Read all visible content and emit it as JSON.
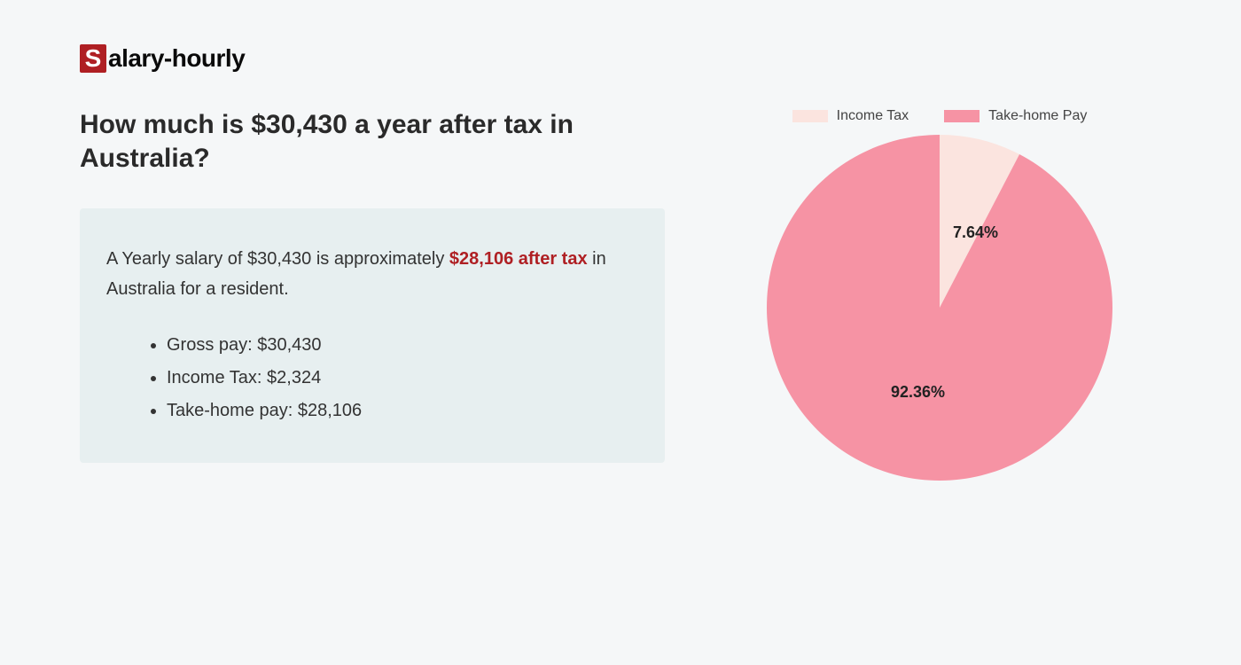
{
  "logo": {
    "box_letter": "S",
    "rest": "alary-hourly",
    "box_bg": "#af1f23",
    "box_fg": "#ffffff",
    "text_color": "#0a0a0a"
  },
  "heading": "How much is $30,430 a year after tax in Australia?",
  "summary": {
    "prefix": "A Yearly salary of $30,430 is approximately ",
    "highlight": "$28,106 after tax",
    "suffix": " in Australia for a resident.",
    "highlight_color": "#af1f23",
    "box_bg": "#e7eff0"
  },
  "bullets": [
    "Gross pay: $30,430",
    "Income Tax: $2,324",
    "Take-home pay: $28,106"
  ],
  "chart": {
    "type": "pie",
    "background": "#f5f7f8",
    "legend": [
      {
        "label": "Income Tax",
        "color": "#fbe4df"
      },
      {
        "label": "Take-home Pay",
        "color": "#f693a4"
      }
    ],
    "slices": [
      {
        "name": "income_tax",
        "value": 7.64,
        "label": "7.64%",
        "color": "#fbe4df"
      },
      {
        "name": "take_home",
        "value": 92.36,
        "label": "92.36%",
        "color": "#f693a4"
      }
    ],
    "label_fontsize": 18,
    "label_fontweight": 700,
    "label_color": "#222222",
    "start_angle_deg": 0,
    "radius": 195
  }
}
